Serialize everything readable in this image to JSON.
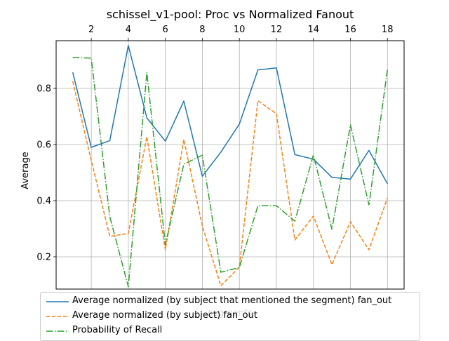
{
  "chart_data": {
    "type": "line",
    "title": "schissel_v1-pool: Proc vs Normalized Fanout",
    "xlabel": "segments",
    "ylabel": "Average",
    "x": [
      1,
      2,
      3,
      4,
      5,
      6,
      7,
      8,
      9,
      10,
      11,
      12,
      13,
      14,
      15,
      16,
      17,
      18
    ],
    "xticks": [
      2,
      4,
      6,
      8,
      10,
      12,
      14,
      16,
      18
    ],
    "yticks": [
      0.2,
      0.4,
      0.6,
      0.8
    ],
    "xlim": [
      0.1,
      18.9
    ],
    "ylim": [
      0.085,
      0.97
    ],
    "x_axis_position": "top",
    "grid": true,
    "legend_position": "lower-center",
    "series": [
      {
        "name": "Average normalized (by subject that mentioned the segment) fan_out",
        "color": "#1f77b4",
        "style": "solid",
        "values": [
          0.857,
          0.59,
          0.614,
          0.953,
          0.695,
          0.612,
          0.755,
          0.487,
          0.573,
          0.673,
          0.866,
          0.873,
          0.564,
          0.548,
          0.483,
          0.477,
          0.579,
          0.46
        ]
      },
      {
        "name": "Average normalized (by subject) fan_out",
        "color": "#ff7f0e",
        "style": "dashed",
        "values": [
          0.825,
          0.543,
          0.273,
          0.283,
          0.628,
          0.225,
          0.618,
          0.31,
          0.097,
          0.163,
          0.756,
          0.71,
          0.26,
          0.345,
          0.172,
          0.325,
          0.225,
          0.41
        ]
      },
      {
        "name": "Probability of Recall",
        "color": "#2ca02c",
        "style": "dashdot",
        "values": [
          0.91,
          0.908,
          0.343,
          0.093,
          0.857,
          0.243,
          0.53,
          0.562,
          0.145,
          0.162,
          0.382,
          0.382,
          0.327,
          0.563,
          0.298,
          0.67,
          0.385,
          0.868
        ]
      }
    ]
  }
}
